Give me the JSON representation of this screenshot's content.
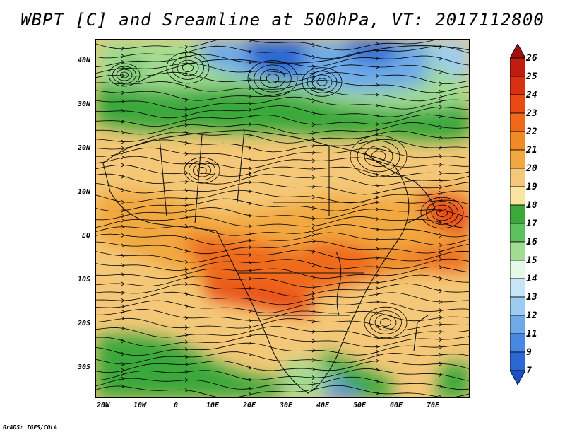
{
  "title": "WBPT [C] and Sreamline at 500hPa, VT: 2017112800",
  "map": {
    "lat_labels": [
      "40N",
      "30N",
      "20N",
      "10N",
      "EQ",
      "10S",
      "20S",
      "30S"
    ],
    "lon_labels": [
      "20W",
      "10W",
      "0",
      "10E",
      "20E",
      "30E",
      "40E",
      "50E",
      "60E",
      "70E"
    ],
    "variable": "WBPT",
    "units": "C",
    "level": "500hPa",
    "overlay": "streamlines",
    "basemap": "country boundaries"
  },
  "colorbar": {
    "labels": [
      "26",
      "25",
      "24",
      "23",
      "22",
      "21",
      "20",
      "19",
      "18",
      "17",
      "16",
      "15",
      "14",
      "13",
      "12",
      "11",
      "9",
      "7"
    ],
    "colors": [
      "#a01010",
      "#c01c10",
      "#d83010",
      "#e84a14",
      "#ee6a1a",
      "#f08a26",
      "#f2a840",
      "#f4c878",
      "#fae4a0",
      "#3aa83a",
      "#5ec05e",
      "#a2dc92",
      "#e6f8e6",
      "#c6e6f8",
      "#9cccf0",
      "#6eaae8",
      "#4888e0",
      "#2c68d4",
      "#1c50c4"
    ]
  },
  "footer": "GrADS: IGES/COLA"
}
